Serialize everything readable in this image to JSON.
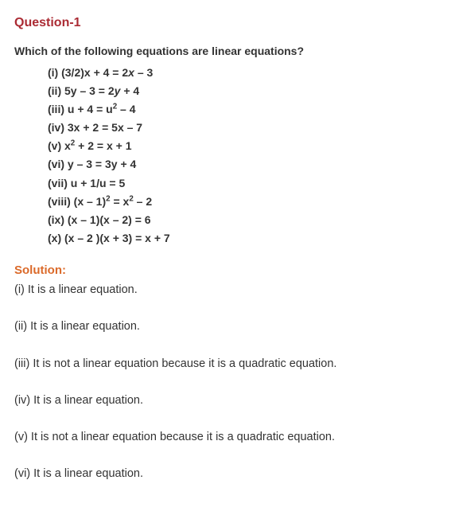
{
  "colors": {
    "title": "#ab2b34",
    "solution_label": "#db6a2a",
    "body_text": "#333333",
    "background": "#ffffff"
  },
  "typography": {
    "title_fontsize": 16,
    "prompt_fontsize": 14,
    "eq_fontsize": 14,
    "solution_label_fontsize": 15,
    "solution_fontsize": 14.5,
    "eq_line_height": 1.65
  },
  "question": {
    "title": "Question-1",
    "prompt": "Which of the following equations are linear equations?",
    "equations": [
      {
        "label": "(i) (3/2)x + 4 = 2",
        "ital_var": "x",
        "after": "  – 3"
      },
      {
        "label": "(ii) 5y – 3 = 2",
        "ital_var": "y",
        "after": "  + 4"
      },
      {
        "label": "(iii) u + 4 = u",
        "sup": "2",
        "after": " – 4"
      },
      {
        "label": "(iv) 3x + 2 = 5x – 7"
      },
      {
        "label": "(v)  x",
        "sup": "2",
        "after": " + 2 = x + 1"
      },
      {
        "label": "(vi)  y – 3 = 3y + 4"
      },
      {
        "label": "(vii) u + 1/u = 5"
      },
      {
        "label": "(viii) (x – 1)",
        "sup": "2",
        "after_mid": " = x",
        "sup2": "2",
        "after": " – 2"
      },
      {
        "label": "(ix) (x – 1)(x – 2) = 6"
      },
      {
        "label": "(x)  (x – 2 )(x + 3) = x + 7"
      }
    ]
  },
  "solution": {
    "label": "Solution:",
    "items": [
      "(i) It is a linear equation.",
      "(ii) It is a linear equation.",
      "(iii) It is not a linear equation because it is a quadratic equation.",
      "(iv) It is a linear equation.",
      "(v) It is not a linear equation because it is a quadratic equation.",
      "(vi) It is a linear equation."
    ]
  }
}
